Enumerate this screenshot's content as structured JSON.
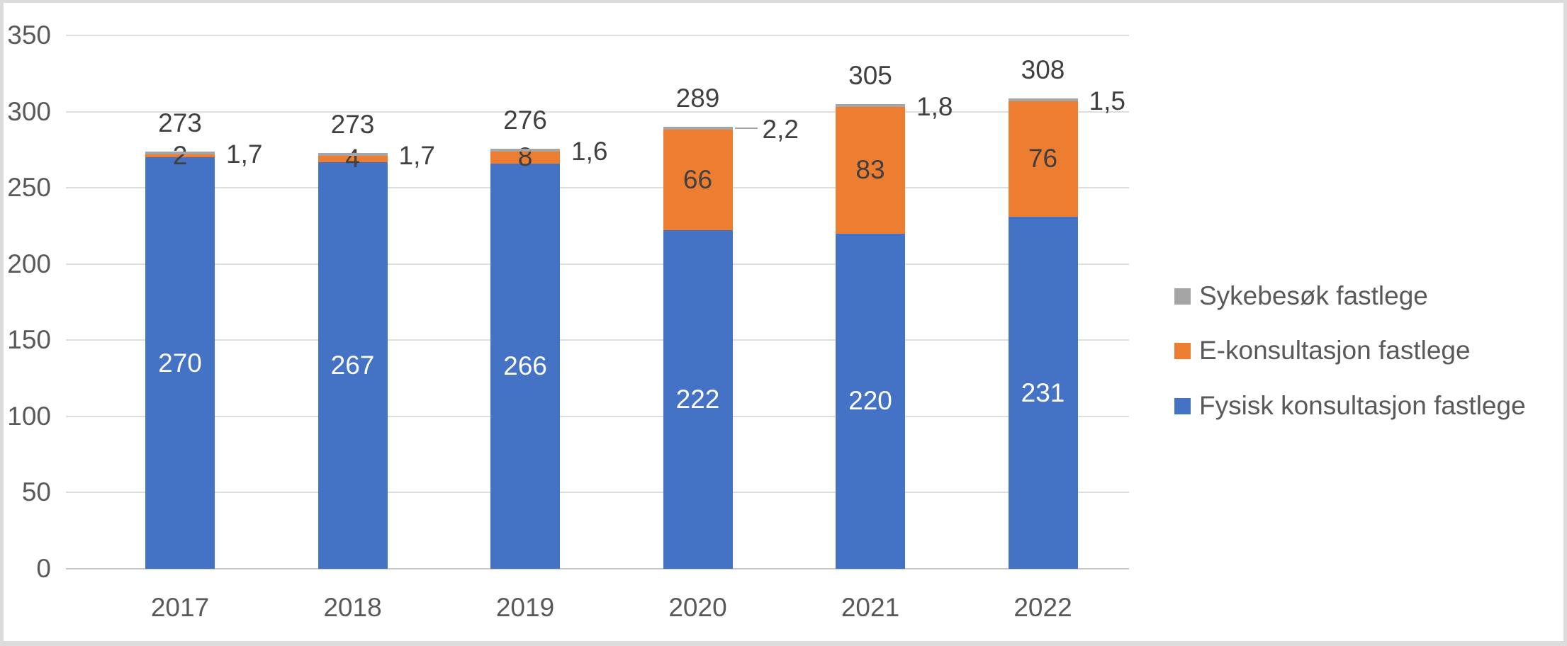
{
  "chart_data": {
    "type": "bar",
    "stacked": true,
    "title": "",
    "xlabel": "",
    "ylabel": "",
    "categories": [
      "2017",
      "2018",
      "2019",
      "2020",
      "2021",
      "2022"
    ],
    "series": [
      {
        "name": "Fysisk konsultasjon fastlege",
        "slug": "fysisk-konsultasjon",
        "color": "#4472C4",
        "values": [
          270,
          267,
          266,
          222,
          220,
          231
        ],
        "value_labels": [
          "270",
          "267",
          "266",
          "222",
          "220",
          "231"
        ],
        "label_color": "#FFFFFF",
        "label_placement": "center"
      },
      {
        "name": "E-konsultasjon fastlege",
        "slug": "e-konsultasjon",
        "color": "#ED7D31",
        "values": [
          2,
          4,
          8,
          66,
          83,
          76
        ],
        "value_labels": [
          "2",
          "4",
          "8",
          "66",
          "83",
          "76"
        ],
        "label_color": "#404040",
        "label_placement": "center"
      },
      {
        "name": "Sykebesøk fastlege",
        "slug": "sykebesok",
        "color": "#A5A5A5",
        "values": [
          1.7,
          1.7,
          1.6,
          2.2,
          1.8,
          1.5
        ],
        "value_labels": [
          "1,7",
          "1,7",
          "1,6",
          "2,2",
          "1,8",
          "1,5"
        ],
        "label_color": "#404040",
        "label_placement": "outside-right",
        "leader_line_category_index": 3
      }
    ],
    "totals": [
      "273",
      "273",
      "276",
      "289",
      "305",
      "308"
    ],
    "ylim": [
      0,
      350
    ],
    "yticks": [
      0,
      50,
      100,
      150,
      200,
      250,
      300,
      350
    ],
    "grid": true,
    "legend": {
      "position": "right",
      "items": [
        {
          "label": "Sykebesøk fastlege",
          "color": "#A5A5A5"
        },
        {
          "label": "E-konsultasjon fastlege",
          "color": "#ED7D31"
        },
        {
          "label": "Fysisk konsultasjon fastlege",
          "color": "#4472C4"
        }
      ]
    },
    "colors": {
      "axis_text": "#595959",
      "label_text": "#404040",
      "gridline": "#DEDEDE",
      "axis_line": "#C9C9C9",
      "leader_line": "#A6A6A6",
      "frame_border": "#DCDCDC",
      "background": "#FFFFFF"
    }
  }
}
